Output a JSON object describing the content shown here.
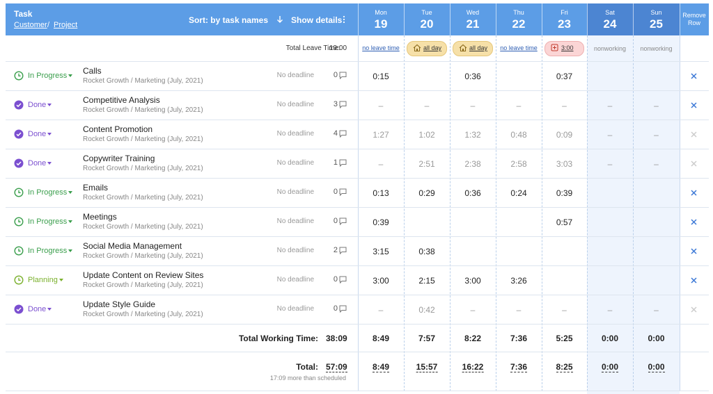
{
  "header": {
    "task": "Task",
    "customer": "Customer",
    "separator": "/",
    "project": "Project",
    "sort": "Sort: by task names",
    "show_details": "Show details",
    "remove": "Remove Row",
    "days": [
      {
        "name": "Mon",
        "date": "19",
        "weekend": false
      },
      {
        "name": "Tue",
        "date": "20",
        "weekend": false
      },
      {
        "name": "Wed",
        "date": "21",
        "weekend": false
      },
      {
        "name": "Thu",
        "date": "22",
        "weekend": false
      },
      {
        "name": "Fri",
        "date": "23",
        "weekend": false
      },
      {
        "name": "Sat",
        "date": "24",
        "weekend": true
      },
      {
        "name": "Sun",
        "date": "25",
        "weekend": true
      }
    ]
  },
  "leave": {
    "label": "Total Leave Time:",
    "value": "19:00",
    "cells": [
      {
        "text": "no leave time",
        "style": "link"
      },
      {
        "text": "all day",
        "style": "allday"
      },
      {
        "text": "all day",
        "style": "allday"
      },
      {
        "text": "no leave time",
        "style": "link"
      },
      {
        "text": "3:00",
        "style": "leave"
      },
      {
        "text": "nonworking",
        "style": "nonworking"
      },
      {
        "text": "nonworking",
        "style": "nonworking"
      }
    ]
  },
  "rows": [
    {
      "status": "In Progress",
      "status_color": "#3a9e4c",
      "icon": "clock",
      "name": "Calls",
      "project": "Rocket Growth / Marketing (July, 2021)",
      "deadline": "No deadline",
      "comments": 0,
      "times": [
        "0:15",
        null,
        "0:36",
        null,
        "0:37",
        null,
        null
      ]
    },
    {
      "status": "Done",
      "status_color": "#7b4fd0",
      "icon": "check",
      "name": "Competitive Analysis",
      "project": "Rocket Growth / Marketing (July, 2021)",
      "deadline": "No deadline",
      "comments": 3,
      "times": [
        "–",
        "–",
        "–",
        "–",
        "–",
        "–",
        "–"
      ],
      "removable": true
    },
    {
      "status": "Done",
      "status_color": "#7b4fd0",
      "icon": "check",
      "name": "Content Promotion",
      "project": "Rocket Growth / Marketing (July, 2021)",
      "deadline": "No deadline",
      "comments": 4,
      "times": [
        "1:27",
        "1:02",
        "1:32",
        "0:48",
        "0:09",
        "–",
        "–"
      ],
      "removable": false
    },
    {
      "status": "Done",
      "status_color": "#7b4fd0",
      "icon": "check",
      "name": "Copywriter Training",
      "project": "Rocket Growth / Marketing (July, 2021)",
      "deadline": "No deadline",
      "comments": 1,
      "times": [
        "–",
        "2:51",
        "2:38",
        "2:58",
        "3:03",
        "–",
        "–"
      ],
      "removable": false
    },
    {
      "status": "In Progress",
      "status_color": "#3a9e4c",
      "icon": "clock",
      "name": "Emails",
      "project": "Rocket Growth / Marketing (July, 2021)",
      "deadline": "No deadline",
      "comments": 0,
      "times": [
        "0:13",
        "0:29",
        "0:36",
        "0:24",
        "0:39",
        null,
        null
      ]
    },
    {
      "status": "In Progress",
      "status_color": "#3a9e4c",
      "icon": "clock",
      "name": "Meetings",
      "project": "Rocket Growth / Marketing (July, 2021)",
      "deadline": "No deadline",
      "comments": 0,
      "times": [
        "0:39",
        null,
        null,
        null,
        "0:57",
        null,
        null
      ]
    },
    {
      "status": "In Progress",
      "status_color": "#3a9e4c",
      "icon": "clock",
      "name": "Social Media Management",
      "project": "Rocket Growth / Marketing (July, 2021)",
      "deadline": "No deadline",
      "comments": 2,
      "times": [
        "3:15",
        "0:38",
        null,
        null,
        null,
        null,
        null
      ]
    },
    {
      "status": "Planning",
      "status_color": "#7ab02c",
      "icon": "clock",
      "name": "Update Content on Review Sites",
      "project": "Rocket Growth / Marketing (July, 2021)",
      "deadline": "No deadline",
      "comments": 0,
      "times": [
        "3:00",
        "2:15",
        "3:00",
        "3:26",
        null,
        null,
        null
      ]
    },
    {
      "status": "Done",
      "status_color": "#7b4fd0",
      "icon": "check",
      "name": "Update Style Guide",
      "project": "Rocket Growth / Marketing (July, 2021)",
      "deadline": "No deadline",
      "comments": 0,
      "times": [
        "–",
        "0:42",
        "–",
        "–",
        "–",
        "–",
        "–"
      ],
      "removable": false
    }
  ],
  "working": {
    "label": "Total Working Time:",
    "value": "38:09",
    "days": [
      "8:49",
      "7:57",
      "8:22",
      "7:36",
      "5:25",
      "0:00",
      "0:00"
    ]
  },
  "total": {
    "label": "Total:",
    "value": "57:09",
    "note": "17:09 more than scheduled",
    "days": [
      "8:49",
      "15:57",
      "16:22",
      "7:36",
      "8:25",
      "0:00",
      "0:00"
    ]
  }
}
